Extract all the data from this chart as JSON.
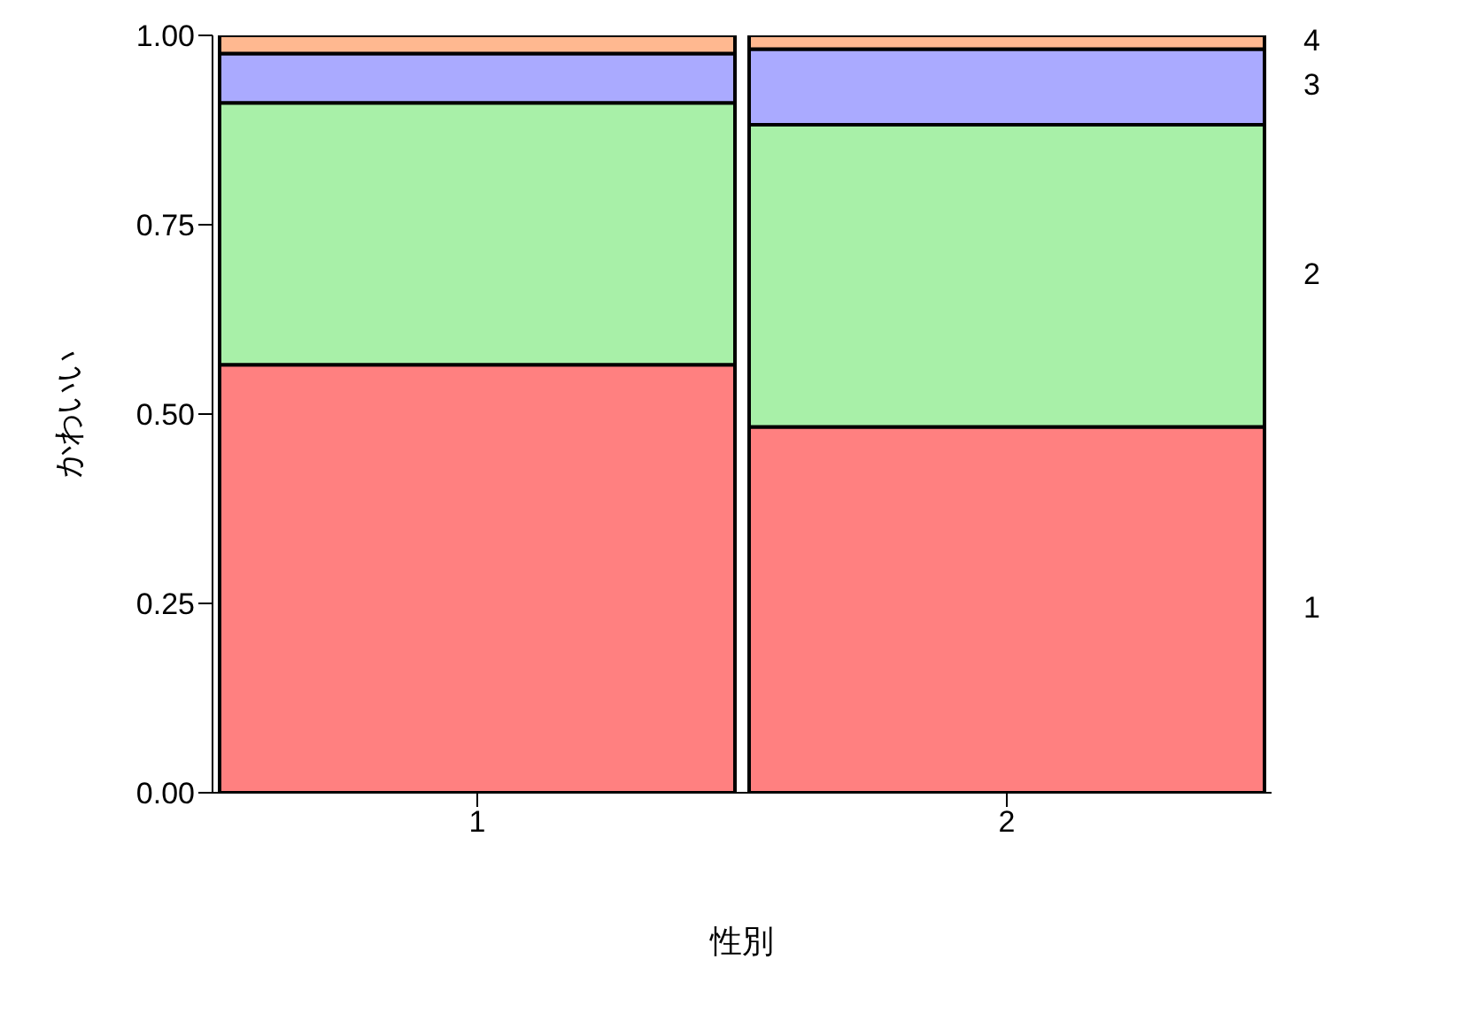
{
  "chart_data": {
    "type": "bar",
    "stacked": true,
    "xlabel": "性別",
    "ylabel": "かわいい",
    "categories": [
      "1",
      "2"
    ],
    "series": [
      {
        "name": "1",
        "color": "#ff8080",
        "values": [
          0.565,
          0.483
        ]
      },
      {
        "name": "2",
        "color": "#a8f0a8",
        "values": [
          0.346,
          0.399
        ]
      },
      {
        "name": "3",
        "color": "#aaaaff",
        "values": [
          0.065,
          0.1
        ]
      },
      {
        "name": "4",
        "color": "#ffb890",
        "values": [
          0.024,
          0.018
        ]
      }
    ],
    "ylim": [
      0,
      1
    ],
    "yticks": [
      {
        "value": 0,
        "label": "0.00"
      },
      {
        "value": 0.25,
        "label": "0.25"
      },
      {
        "value": 0.5,
        "label": "0.50"
      },
      {
        "value": 0.75,
        "label": "0.75"
      },
      {
        "value": 1,
        "label": "1.00"
      }
    ],
    "grid": false,
    "legend": false
  }
}
